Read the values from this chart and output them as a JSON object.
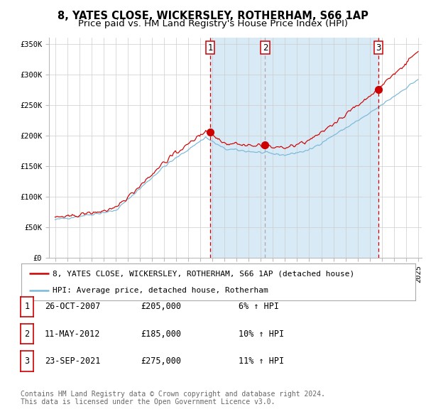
{
  "title": "8, YATES CLOSE, WICKERSLEY, ROTHERHAM, S66 1AP",
  "subtitle": "Price paid vs. HM Land Registry's House Price Index (HPI)",
  "ylim": [
    0,
    360000
  ],
  "yticks": [
    0,
    50000,
    100000,
    150000,
    200000,
    250000,
    300000,
    350000
  ],
  "ytick_labels": [
    "£0",
    "£50K",
    "£100K",
    "£150K",
    "£200K",
    "£250K",
    "£300K",
    "£350K"
  ],
  "x_start_year": 1995,
  "x_end_year": 2025,
  "hpi_color": "#7ab8d9",
  "price_color": "#cc0000",
  "sale_marker_color": "#cc0000",
  "sale_dot_size": 7,
  "background_color": "#ffffff",
  "grid_color": "#cccccc",
  "shaded_region_color": "#d8eaf5",
  "sales": [
    {
      "date_decimal": 2007.82,
      "price": 205000,
      "label": "1"
    },
    {
      "date_decimal": 2012.36,
      "price": 185000,
      "label": "2"
    },
    {
      "date_decimal": 2021.73,
      "price": 275000,
      "label": "3"
    }
  ],
  "vline_colors": [
    "#cc0000",
    "#aaaaaa",
    "#cc0000"
  ],
  "legend_label_red": "8, YATES CLOSE, WICKERSLEY, ROTHERHAM, S66 1AP (detached house)",
  "legend_label_blue": "HPI: Average price, detached house, Rotherham",
  "table_rows": [
    {
      "num": "1",
      "date": "26-OCT-2007",
      "price": "£205,000",
      "change": "6% ↑ HPI"
    },
    {
      "num": "2",
      "date": "11-MAY-2012",
      "price": "£185,000",
      "change": "10% ↑ HPI"
    },
    {
      "num": "3",
      "date": "23-SEP-2021",
      "price": "£275,000",
      "change": "11% ↑ HPI"
    }
  ],
  "footer_text": "Contains HM Land Registry data © Crown copyright and database right 2024.\nThis data is licensed under the Open Government Licence v3.0.",
  "title_fontsize": 10.5,
  "subtitle_fontsize": 9.5,
  "tick_fontsize": 7.5,
  "legend_fontsize": 8,
  "table_fontsize": 8.5
}
